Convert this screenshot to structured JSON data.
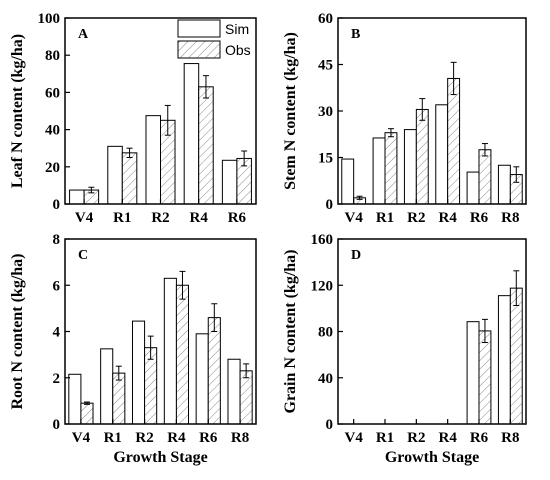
{
  "legend": {
    "sim": "Sim",
    "obs": "Obs"
  },
  "chart_data": [
    {
      "type": "bar",
      "panel": "A",
      "categories": [
        "V4",
        "R1",
        "R2",
        "R4",
        "R6"
      ],
      "xlabel": "",
      "ylabel": "Leaf N content (kg/ha)",
      "ylim": [
        0,
        100
      ],
      "yticks": [
        0,
        20,
        40,
        60,
        80,
        100
      ],
      "series": [
        {
          "name": "Sim",
          "values": [
            7.5,
            31,
            47.5,
            75.5,
            23.5
          ]
        },
        {
          "name": "Obs",
          "values": [
            7.5,
            27.5,
            45,
            63,
            24.5
          ],
          "errors": [
            1.5,
            2.5,
            8,
            6,
            4
          ]
        }
      ],
      "legend_position": "top-center"
    },
    {
      "type": "bar",
      "panel": "B",
      "categories": [
        "V4",
        "R1",
        "R2",
        "R4",
        "R6",
        "R8"
      ],
      "xlabel": "",
      "ylabel": "Stem N content (kg/ha)",
      "ylim": [
        0,
        60
      ],
      "yticks": [
        0,
        15,
        30,
        45,
        60
      ],
      "series": [
        {
          "name": "Sim",
          "values": [
            14.5,
            21.3,
            24,
            32,
            10.3,
            12.5
          ]
        },
        {
          "name": "Obs",
          "values": [
            2,
            23,
            30.5,
            40.5,
            17.5,
            9.5
          ],
          "errors": [
            0.5,
            1.3,
            3.5,
            5.2,
            2,
            2.5
          ]
        }
      ]
    },
    {
      "type": "bar",
      "panel": "C",
      "categories": [
        "V4",
        "R1",
        "R2",
        "R4",
        "R6",
        "R8"
      ],
      "xlabel": "Growth Stage",
      "ylabel": "Root N content (kg/ha)",
      "ylim": [
        0,
        8
      ],
      "yticks": [
        0,
        2,
        4,
        6,
        8
      ],
      "series": [
        {
          "name": "Sim",
          "values": [
            2.15,
            3.25,
            4.45,
            6.3,
            3.9,
            2.8
          ]
        },
        {
          "name": "Obs",
          "values": [
            0.9,
            2.2,
            3.3,
            6,
            4.6,
            2.3
          ],
          "errors": [
            0.05,
            0.3,
            0.5,
            0.6,
            0.6,
            0.3
          ]
        }
      ]
    },
    {
      "type": "bar",
      "panel": "D",
      "categories": [
        "V4",
        "R1",
        "R2",
        "R4",
        "R6",
        "R8"
      ],
      "xlabel": "Growth Stage",
      "ylabel": "Grain N content (kg/ha)",
      "ylim": [
        0,
        160
      ],
      "yticks": [
        0,
        40,
        80,
        120,
        160
      ],
      "series": [
        {
          "name": "Sim",
          "values": [
            0,
            0,
            0,
            0,
            88.5,
            111
          ]
        },
        {
          "name": "Obs",
          "values": [
            0,
            0,
            0,
            0,
            80.5,
            117.5
          ],
          "errors": [
            0,
            0,
            0,
            0,
            10,
            15
          ]
        }
      ]
    }
  ]
}
